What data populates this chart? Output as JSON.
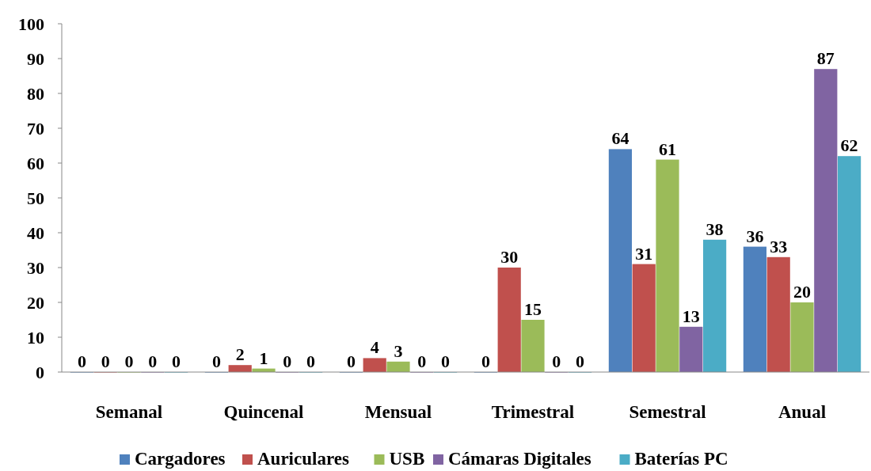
{
  "chart_data": {
    "type": "bar",
    "categories": [
      "Semanal",
      "Quincenal",
      "Mensual",
      "Trimestral",
      "Semestral",
      "Anual"
    ],
    "series": [
      {
        "name": "Cargadores",
        "color": "#4f81bd",
        "values": [
          0,
          0,
          0,
          0,
          64,
          36
        ]
      },
      {
        "name": "Auriculares",
        "color": "#c0504d",
        "values": [
          0,
          2,
          4,
          30,
          31,
          33
        ]
      },
      {
        "name": "USB",
        "color": "#9bbb59",
        "values": [
          0,
          1,
          3,
          15,
          61,
          20
        ]
      },
      {
        "name": "Cámaras Digitales",
        "color": "#8064a2",
        "values": [
          0,
          0,
          0,
          0,
          13,
          87
        ]
      },
      {
        "name": "Baterías PC",
        "color": "#4bacc6",
        "values": [
          0,
          0,
          0,
          0,
          38,
          62
        ]
      }
    ],
    "ylim": [
      0,
      100
    ],
    "yticks": [
      0,
      10,
      20,
      30,
      40,
      50,
      60,
      70,
      80,
      90,
      100
    ],
    "data_labels": true,
    "legend": "bottom",
    "grid": false
  }
}
